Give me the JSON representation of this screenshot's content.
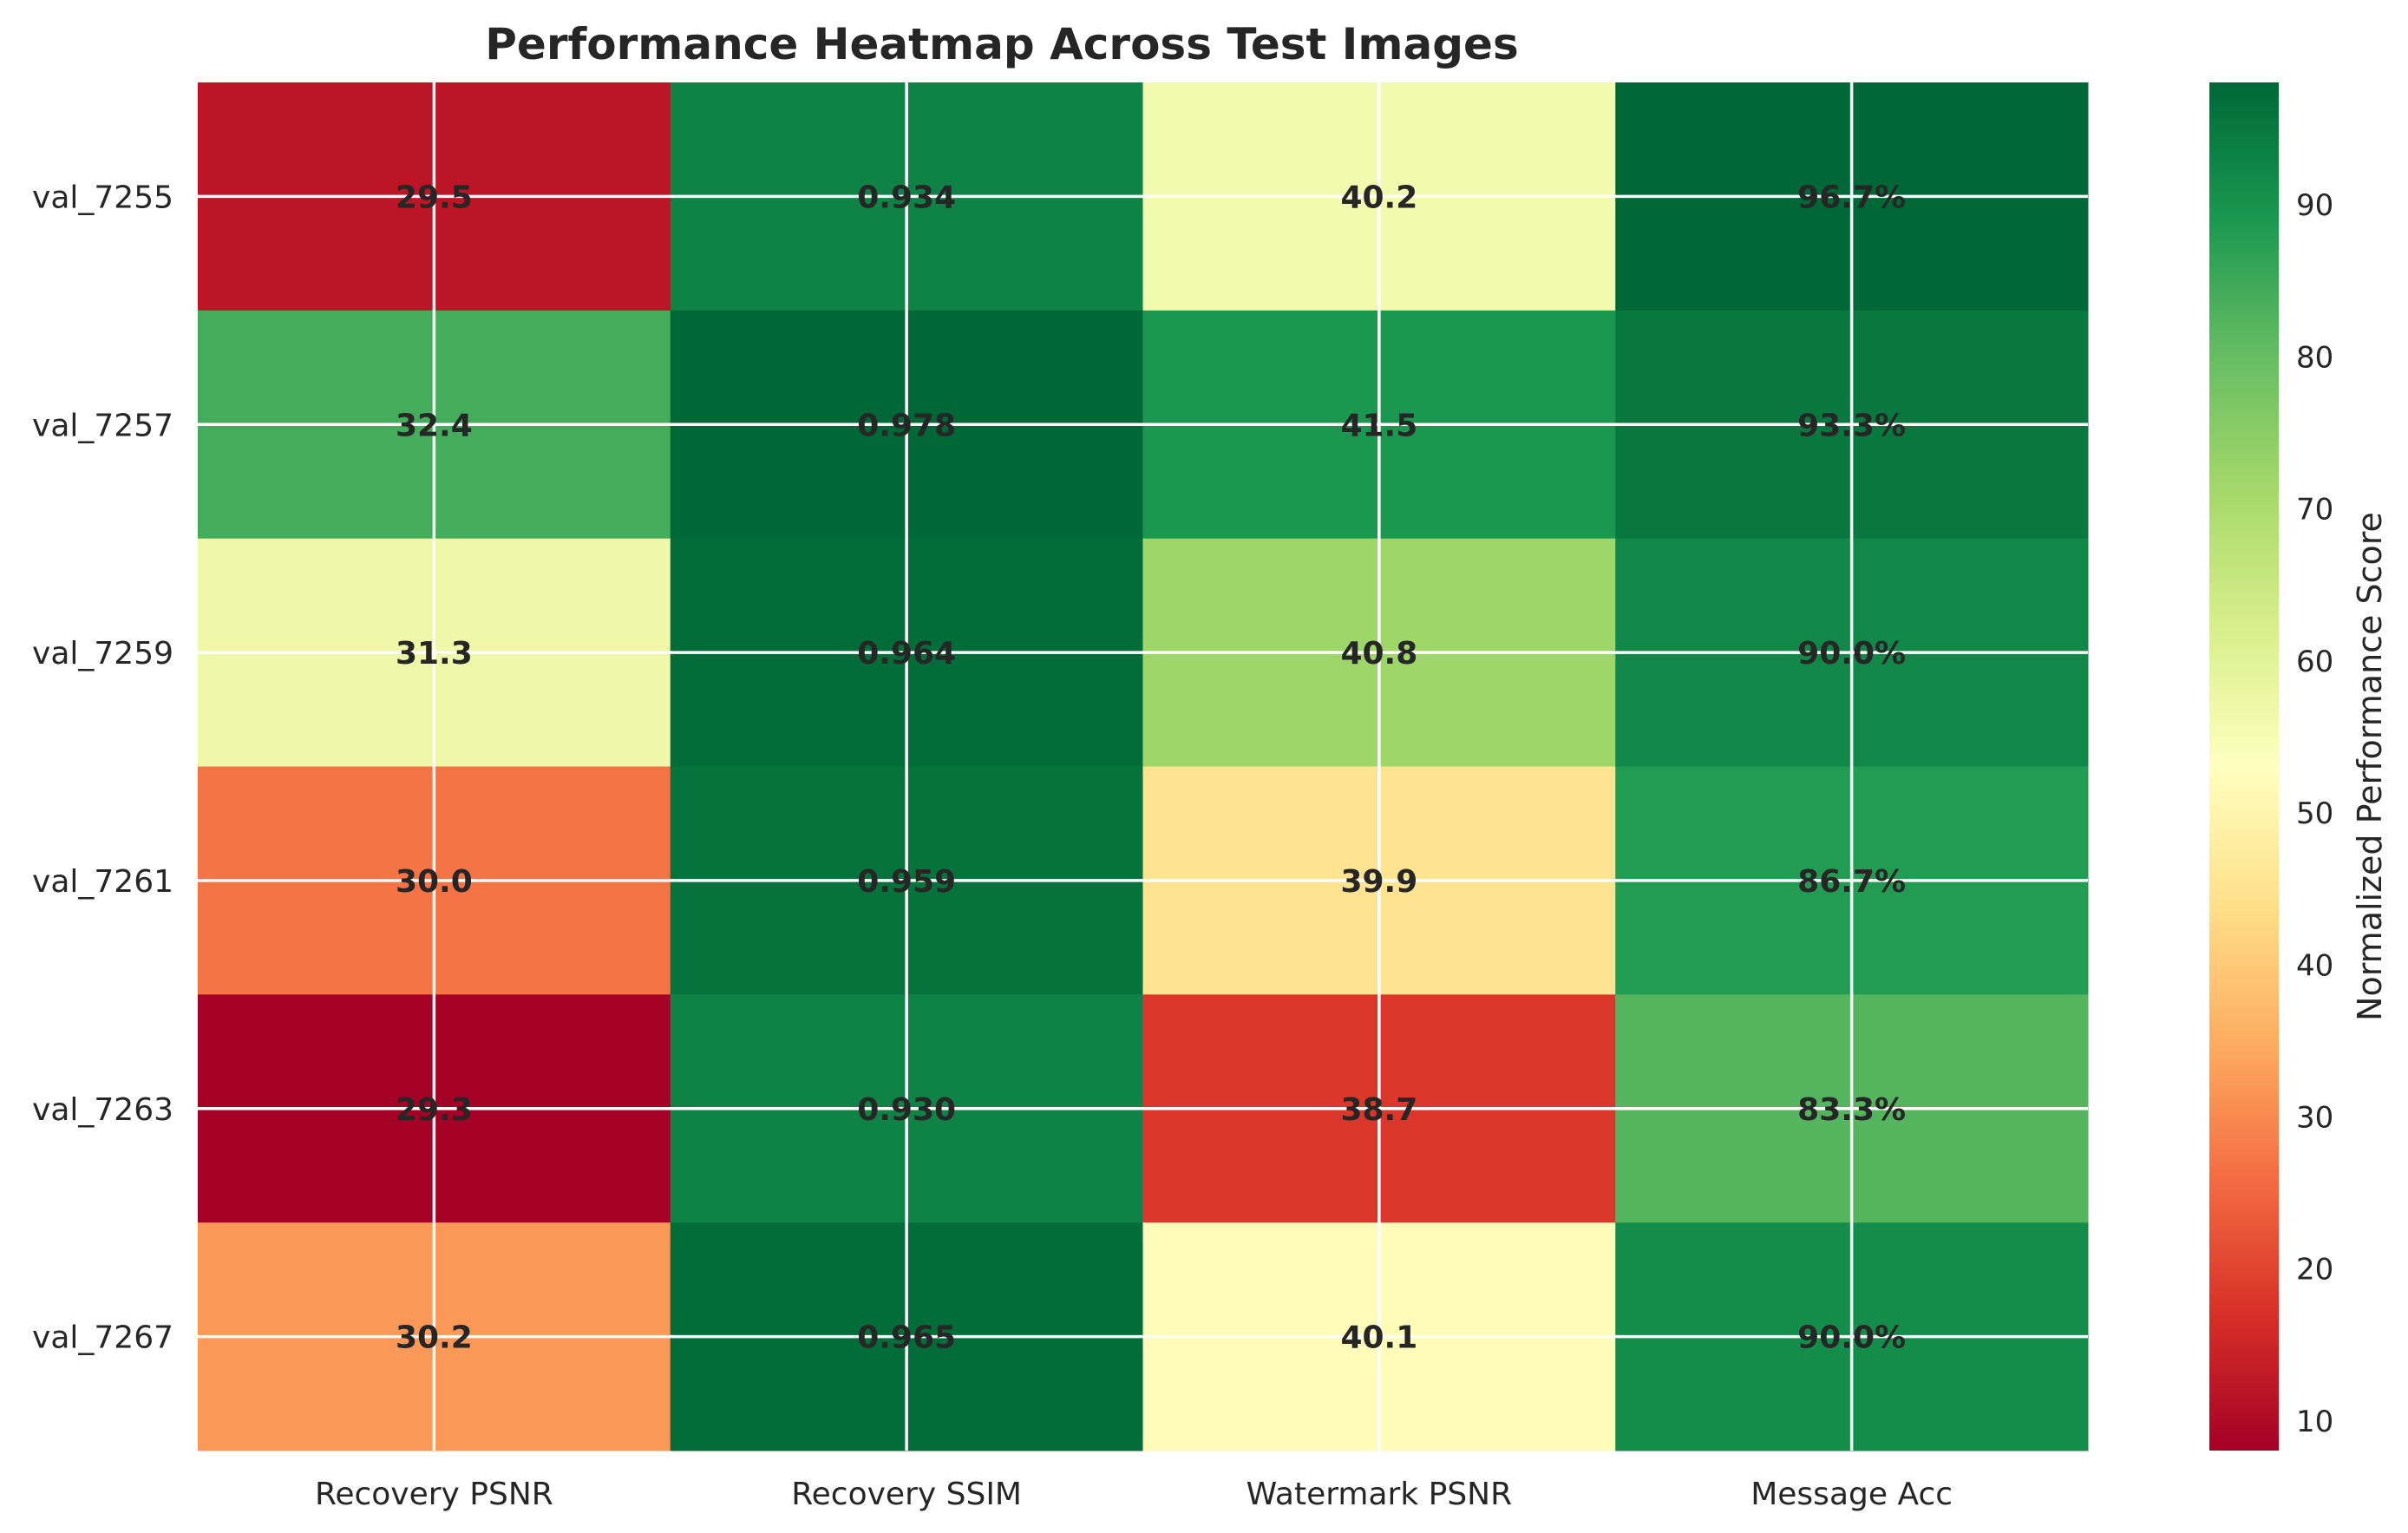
{
  "chart_data": {
    "type": "heatmap",
    "title": "Performance Heatmap Across Test Images",
    "rows": [
      "val_7255",
      "val_7257",
      "val_7259",
      "val_7261",
      "val_7263",
      "val_7267"
    ],
    "columns": [
      "Recovery PSNR",
      "Recovery SSIM",
      "Watermark PSNR",
      "Message Acc"
    ],
    "cell_labels": [
      [
        "29.5",
        "0.934",
        "40.2",
        "96.7%"
      ],
      [
        "32.4",
        "0.978",
        "41.5",
        "93.3%"
      ],
      [
        "31.3",
        "0.964",
        "40.8",
        "90.0%"
      ],
      [
        "30.0",
        "0.959",
        "39.9",
        "86.7%"
      ],
      [
        "29.3",
        "0.930",
        "38.7",
        "83.3%"
      ],
      [
        "30.2",
        "0.965",
        "40.1",
        "90.0%"
      ]
    ],
    "normalized_scores": [
      [
        12,
        93,
        56,
        98
      ],
      [
        84,
        98,
        89,
        95
      ],
      [
        57,
        97,
        72,
        92
      ],
      [
        27,
        96,
        45,
        88
      ],
      [
        8,
        93,
        18,
        82
      ],
      [
        32,
        97,
        52,
        91
      ]
    ],
    "colormap": "RdYlGn",
    "colorbar": {
      "label": "Normalized Performance Score",
      "range": [
        8,
        98
      ],
      "ticks": [
        10,
        20,
        30,
        40,
        50,
        60,
        70,
        80,
        90
      ]
    },
    "grid": true
  }
}
